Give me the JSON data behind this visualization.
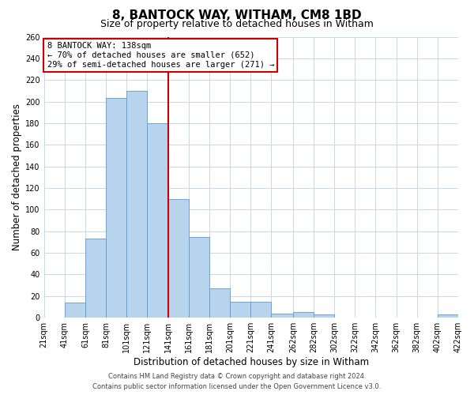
{
  "title": "8, BANTOCK WAY, WITHAM, CM8 1BD",
  "subtitle": "Size of property relative to detached houses in Witham",
  "xlabel": "Distribution of detached houses by size in Witham",
  "ylabel": "Number of detached properties",
  "bin_lefts": [
    21,
    41,
    61,
    81,
    101,
    121,
    141,
    161,
    181,
    201,
    221,
    241,
    262,
    282,
    302,
    322,
    342,
    362,
    382,
    402
  ],
  "bin_rights": [
    41,
    61,
    81,
    101,
    121,
    141,
    161,
    181,
    201,
    221,
    241,
    262,
    282,
    302,
    322,
    342,
    362,
    382,
    402,
    422
  ],
  "bar_heights": [
    0,
    14,
    73,
    203,
    210,
    180,
    110,
    75,
    27,
    15,
    15,
    4,
    5,
    3,
    0,
    0,
    0,
    0,
    0,
    3
  ],
  "bar_color": "#b8d4ed",
  "bar_edge_color": "#5b9bd5",
  "red_line_x": 141,
  "red_line_color": "#cc0000",
  "annotation_text": "8 BANTOCK WAY: 138sqm\n← 70% of detached houses are smaller (652)\n29% of semi-detached houses are larger (271) →",
  "annotation_box_color": "#ffffff",
  "annotation_box_edge": "#cc0000",
  "ylim": [
    0,
    260
  ],
  "yticks": [
    0,
    20,
    40,
    60,
    80,
    100,
    120,
    140,
    160,
    180,
    200,
    220,
    240,
    260
  ],
  "xtick_positions": [
    21,
    41,
    61,
    81,
    101,
    121,
    141,
    161,
    181,
    201,
    221,
    241,
    262,
    282,
    302,
    322,
    342,
    362,
    382,
    402,
    422
  ],
  "xtick_labels": [
    "21sqm",
    "41sqm",
    "61sqm",
    "81sqm",
    "101sqm",
    "121sqm",
    "141sqm",
    "161sqm",
    "181sqm",
    "201sqm",
    "221sqm",
    "241sqm",
    "262sqm",
    "282sqm",
    "302sqm",
    "322sqm",
    "342sqm",
    "362sqm",
    "382sqm",
    "402sqm",
    "422sqm"
  ],
  "footer_line1": "Contains HM Land Registry data © Crown copyright and database right 2024.",
  "footer_line2": "Contains public sector information licensed under the Open Government Licence v3.0.",
  "background_color": "#ffffff",
  "grid_color": "#c8d8e8",
  "title_fontsize": 11,
  "subtitle_fontsize": 9,
  "axis_label_fontsize": 8.5,
  "tick_fontsize": 7,
  "footer_fontsize": 6,
  "annotation_fontsize": 7.5
}
